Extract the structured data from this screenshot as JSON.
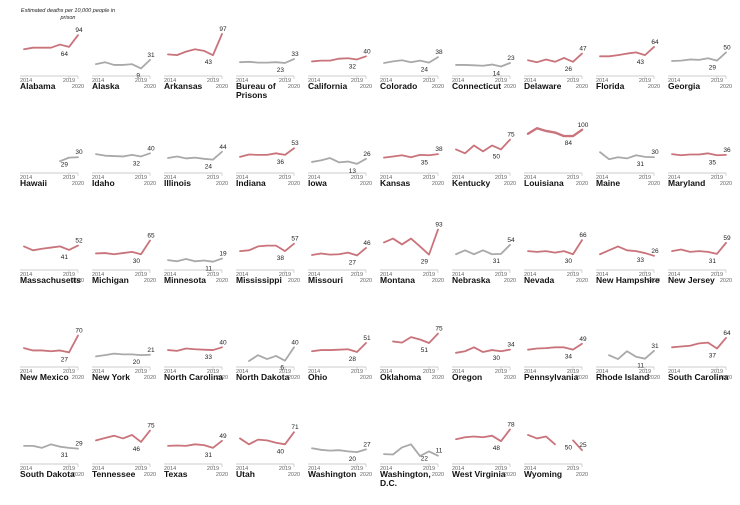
{
  "chart_data": {
    "type": "line",
    "annotation": "Estimated deaths per 10,000 people in prison",
    "x": [
      2014,
      2015,
      2016,
      2017,
      2018,
      2019,
      2020
    ],
    "tick_labels": [
      "2014",
      "2019",
      "2020"
    ],
    "ylim": [
      0,
      100
    ],
    "colors": {
      "up": "#c9737b",
      "down": "#a9a9a9",
      "axis": "#bbbbbb"
    },
    "panels": [
      {
        "name": "Alabama",
        "values": [
          58,
          62,
          62,
          62,
          70,
          64,
          94
        ],
        "label_2019": "64",
        "label_2020": "94",
        "trend": "up"
      },
      {
        "name": "Alaska",
        "values": [
          20,
          25,
          18,
          18,
          20,
          9,
          31
        ],
        "label_2019": "9",
        "label_2020": "31",
        "trend": "down"
      },
      {
        "name": "Arkansas",
        "values": [
          45,
          43,
          52,
          58,
          54,
          43,
          97
        ],
        "label_2019": "43",
        "label_2020": "97",
        "trend": "up"
      },
      {
        "name": "Bureau of Prisons",
        "values": [
          25,
          26,
          24,
          24,
          25,
          23,
          33
        ],
        "label_2019": "23",
        "label_2020": "33",
        "trend": "down"
      },
      {
        "name": "California",
        "values": [
          27,
          29,
          29,
          34,
          35,
          32,
          40
        ],
        "label_2019": "32",
        "label_2020": "40",
        "trend": "up"
      },
      {
        "name": "Colorado",
        "values": [
          23,
          27,
          30,
          25,
          29,
          24,
          38
        ],
        "label_2019": "24",
        "label_2020": "38",
        "trend": "down"
      },
      {
        "name": "Connecticut",
        "values": [
          18,
          18,
          17,
          16,
          19,
          14,
          23
        ],
        "label_2019": "14",
        "label_2020": "23",
        "trend": "down"
      },
      {
        "name": "Delaware",
        "values": [
          30,
          25,
          32,
          26,
          36,
          26,
          47
        ],
        "label_2019": "26",
        "label_2020": "47",
        "trend": "up"
      },
      {
        "name": "Florida",
        "values": [
          40,
          40,
          43,
          47,
          50,
          43,
          64
        ],
        "label_2019": "43",
        "label_2020": "64",
        "trend": "up"
      },
      {
        "name": "Georgia",
        "values": [
          28,
          29,
          32,
          31,
          35,
          29,
          50
        ],
        "label_2019": "29",
        "label_2020": "50",
        "trend": "down"
      },
      {
        "name": "Hawaii",
        "values": [
          null,
          null,
          null,
          null,
          20,
          29,
          30
        ],
        "label_2019": "29",
        "label_2020": "30",
        "trend": "down"
      },
      {
        "name": "Idaho",
        "values": [
          38,
          34,
          33,
          32,
          36,
          32,
          40
        ],
        "label_2019": "32",
        "label_2020": "40",
        "trend": "down"
      },
      {
        "name": "Illinois",
        "values": [
          28,
          32,
          27,
          29,
          26,
          24,
          44
        ],
        "label_2019": "24",
        "label_2020": "44",
        "trend": "down"
      },
      {
        "name": "Indiana",
        "values": [
          31,
          37,
          36,
          36,
          40,
          36,
          53
        ],
        "label_2019": "36",
        "label_2020": "53",
        "trend": "up"
      },
      {
        "name": "Iowa",
        "values": [
          18,
          22,
          28,
          17,
          19,
          13,
          26
        ],
        "label_2019": "13",
        "label_2020": "26",
        "trend": "down"
      },
      {
        "name": "Kansas",
        "values": [
          29,
          32,
          35,
          30,
          36,
          35,
          38
        ],
        "label_2019": "35",
        "label_2020": "38",
        "trend": "up"
      },
      {
        "name": "Kentucky",
        "values": [
          50,
          40,
          60,
          45,
          60,
          50,
          75
        ],
        "label_2019": "50",
        "label_2020": "75",
        "trend": "up"
      },
      {
        "name": "Louisiana",
        "values": [
          90,
          104,
          97,
          93,
          84,
          84,
          100
        ],
        "label_2019": "84",
        "label_2020": "100",
        "trend": "up",
        "emphasis": true
      },
      {
        "name": "Maine",
        "values": [
          43,
          25,
          30,
          27,
          35,
          31,
          30
        ],
        "label_2019": "31",
        "label_2020": "30",
        "trend": "down"
      },
      {
        "name": "Maryland",
        "values": [
          38,
          35,
          37,
          37,
          40,
          35,
          36
        ],
        "label_2019": "35",
        "label_2020": "36",
        "trend": "up"
      },
      {
        "name": "Massachusetts",
        "values": [
          50,
          40,
          44,
          47,
          50,
          41,
          52
        ],
        "label_2019": "41",
        "label_2020": "52",
        "trend": "up"
      },
      {
        "name": "Michigan",
        "values": [
          32,
          33,
          30,
          33,
          36,
          30,
          65
        ],
        "label_2019": "30",
        "label_2020": "65",
        "trend": "up"
      },
      {
        "name": "Minnesota",
        "values": [
          15,
          12,
          18,
          12,
          14,
          11,
          19
        ],
        "label_2019": "11",
        "label_2020": "19",
        "trend": "down"
      },
      {
        "name": "Mississippi",
        "values": [
          38,
          40,
          50,
          52,
          52,
          38,
          57
        ],
        "label_2019": "38",
        "label_2020": "57",
        "trend": "up"
      },
      {
        "name": "Missouri",
        "values": [
          28,
          32,
          29,
          30,
          34,
          27,
          46
        ],
        "label_2019": "27",
        "label_2020": "46",
        "trend": "up"
      },
      {
        "name": "Montana",
        "values": [
          60,
          70,
          55,
          70,
          50,
          29,
          93
        ],
        "label_2019": "29",
        "label_2020": "93",
        "trend": "up"
      },
      {
        "name": "Nebraska",
        "values": [
          30,
          40,
          30,
          40,
          30,
          31,
          54
        ],
        "label_2019": "31",
        "label_2020": "54",
        "trend": "down"
      },
      {
        "name": "Nevada",
        "values": [
          38,
          36,
          38,
          34,
          38,
          30,
          66
        ],
        "label_2019": "30",
        "label_2020": "66",
        "trend": "up"
      },
      {
        "name": "New Hampshire",
        "values": [
          30,
          40,
          50,
          40,
          38,
          33,
          26
        ],
        "label_2019": "33",
        "label_2020": "26",
        "trend": "up"
      },
      {
        "name": "New Jersey",
        "values": [
          38,
          42,
          36,
          38,
          36,
          31,
          59
        ],
        "label_2019": "31",
        "label_2020": "59",
        "trend": "up"
      },
      {
        "name": "New Mexico",
        "values": [
          38,
          32,
          32,
          30,
          32,
          27,
          70
        ],
        "label_2019": "27",
        "label_2020": "70",
        "trend": "up"
      },
      {
        "name": "New York",
        "values": [
          17,
          20,
          24,
          22,
          22,
          20,
          21
        ],
        "label_2019": "20",
        "label_2020": "21",
        "trend": "down"
      },
      {
        "name": "North Carolina",
        "values": [
          33,
          31,
          37,
          35,
          34,
          33,
          40
        ],
        "label_2019": "33",
        "label_2020": "40",
        "trend": "up"
      },
      {
        "name": "North Dakota",
        "values": [
          null,
          5,
          20,
          10,
          18,
          6,
          40
        ],
        "label_2019": "6",
        "label_2020": "40",
        "trend": "down"
      },
      {
        "name": "Ohio",
        "values": [
          30,
          33,
          33,
          34,
          35,
          28,
          51
        ],
        "label_2019": "28",
        "label_2020": "51",
        "trend": "up"
      },
      {
        "name": "Oklahoma",
        "values": [
          null,
          55,
          52,
          66,
          60,
          51,
          75
        ],
        "label_2019": "51",
        "label_2020": "75",
        "trend": "up"
      },
      {
        "name": "Oregon",
        "values": [
          26,
          30,
          40,
          28,
          33,
          30,
          34
        ],
        "label_2019": "30",
        "label_2020": "34",
        "trend": "up"
      },
      {
        "name": "Pennsylvania",
        "values": [
          34,
          37,
          38,
          40,
          40,
          34,
          49
        ],
        "label_2019": "34",
        "label_2020": "49",
        "trend": "up"
      },
      {
        "name": "Rhode Island",
        "values": [
          null,
          20,
          10,
          30,
          16,
          11,
          31
        ],
        "label_2019": "11",
        "label_2020": "31",
        "trend": "down"
      },
      {
        "name": "South Carolina",
        "values": [
          40,
          42,
          44,
          50,
          52,
          37,
          64
        ],
        "label_2019": "37",
        "label_2020": "64",
        "trend": "up"
      },
      {
        "name": "South Dakota",
        "values": [
          36,
          36,
          31,
          40,
          34,
          31,
          29
        ],
        "label_2019": "31",
        "label_2020": "29",
        "trend": "down"
      },
      {
        "name": "Tennessee",
        "values": [
          50,
          56,
          62,
          55,
          64,
          46,
          75
        ],
        "label_2019": "46",
        "label_2020": "75",
        "trend": "up"
      },
      {
        "name": "Texas",
        "values": [
          36,
          37,
          36,
          40,
          38,
          31,
          49
        ],
        "label_2019": "31",
        "label_2020": "49",
        "trend": "up"
      },
      {
        "name": "Utah",
        "values": [
          55,
          40,
          52,
          50,
          44,
          40,
          71
        ],
        "label_2019": "40",
        "label_2020": "71",
        "trend": "up"
      },
      {
        "name": "Washington",
        "values": [
          30,
          26,
          24,
          25,
          22,
          20,
          27
        ],
        "label_2019": "20",
        "label_2020": "27",
        "trend": "down"
      },
      {
        "name": "Washington, D.C.",
        "values": [
          15,
          14,
          32,
          40,
          10,
          22,
          11
        ],
        "label_2019": "22",
        "label_2020": "11",
        "trend": "down"
      },
      {
        "name": "West Virginia",
        "values": [
          53,
          58,
          60,
          58,
          62,
          48,
          78
        ],
        "label_2019": "48",
        "label_2020": "78",
        "trend": "up"
      },
      {
        "name": "Wyoming",
        "values": [
          64,
          55,
          60,
          40,
          null,
          50,
          25
        ],
        "label_2019": "50",
        "label_2020": "25",
        "trend": "up"
      }
    ]
  }
}
